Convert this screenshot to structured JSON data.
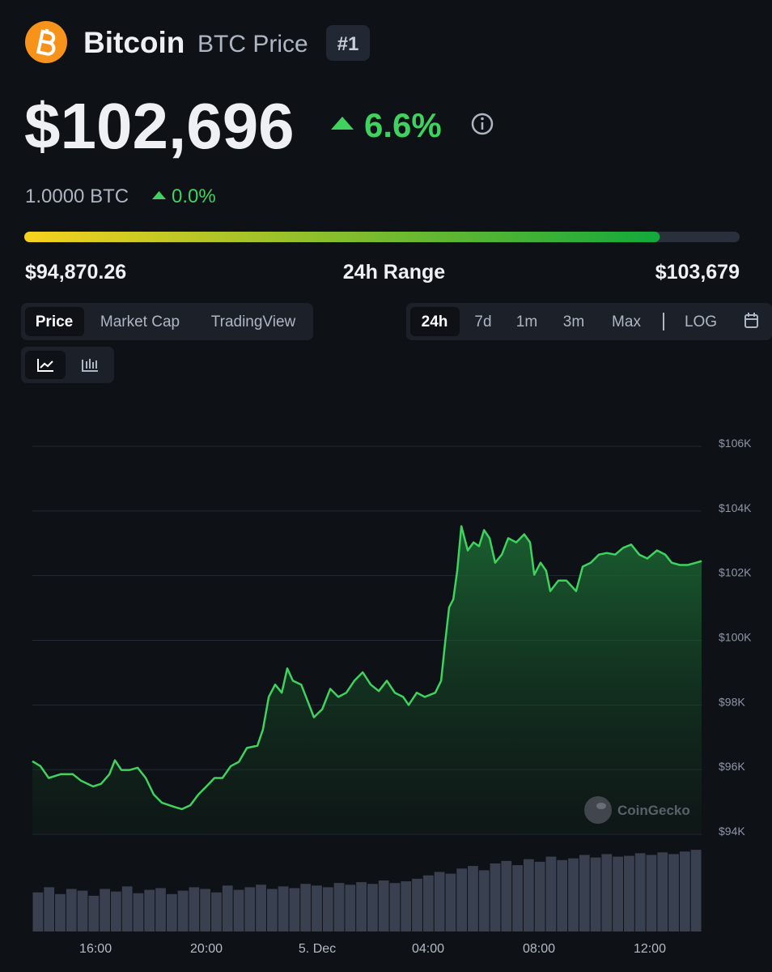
{
  "header": {
    "name": "Bitcoin",
    "symbol": "BTC Price",
    "rank": "#1"
  },
  "price": {
    "value": 102696,
    "label": "$102,696"
  },
  "change": "6.6%",
  "btc_price": "1.0000 BTC",
  "btc_change": "0.0%",
  "range": {
    "low": {
      "value": 94870.26,
      "label": "$94,870.26"
    },
    "label": "24h Range",
    "high": {
      "value": 103679,
      "label": "$103,679"
    }
  },
  "tabs": [
    "Price",
    "Market Cap",
    "TradingView"
  ],
  "periods": [
    "24h",
    "7d",
    "1m",
    "3m",
    "Max"
  ],
  "log": "LOG",
  "watermark": "CoinGecko",
  "chart_data": {
    "type": "area",
    "color": "#3fd25f",
    "x": [
      13.72,
      14.01,
      14.31,
      14.74,
      15.18,
      15.47,
      15.91,
      16.2,
      16.5,
      16.7,
      16.93,
      17.23,
      17.52,
      17.81,
      18.1,
      18.39,
      18.83,
      19.12,
      19.42,
      19.71,
      20.0,
      20.29,
      20.58,
      20.88,
      21.17,
      21.46,
      21.84,
      22.04,
      22.25,
      22.48,
      22.72,
      22.92,
      23.12,
      23.42,
      23.65,
      23.88,
      24.18,
      24.47,
      24.76,
      25.05,
      25.34,
      25.64,
      25.93,
      26.22,
      26.51,
      26.8,
      27.1,
      27.3,
      27.59,
      27.88,
      28.26,
      28.47,
      28.61,
      28.76,
      28.91,
      29.05,
      29.2,
      29.43,
      29.64,
      29.84,
      30.02,
      30.22,
      30.42,
      30.66,
      30.89,
      31.18,
      31.47,
      31.68,
      31.83,
      32.06,
      32.26,
      32.41,
      32.7,
      32.99,
      33.34,
      33.58,
      33.87,
      34.16,
      34.45,
      34.75,
      35.04,
      35.33,
      35.62,
      35.91,
      36.26,
      36.56,
      36.79,
      37.08,
      37.37,
      37.67,
      37.87
    ],
    "values": [
      96260,
      96110,
      95740,
      95860,
      95860,
      95660,
      95480,
      95560,
      95860,
      96290,
      95990,
      95990,
      96060,
      95740,
      95230,
      94980,
      94850,
      94780,
      94900,
      95230,
      95480,
      95740,
      95740,
      96110,
      96240,
      96670,
      96740,
      97240,
      98250,
      98630,
      98380,
      99130,
      98750,
      98630,
      98130,
      97620,
      97870,
      98500,
      98250,
      98380,
      98750,
      99010,
      98630,
      98430,
      98750,
      98380,
      98250,
      98000,
      98380,
      98250,
      98380,
      98750,
      99890,
      101020,
      101270,
      102150,
      103530,
      102780,
      103030,
      102910,
      103410,
      103160,
      102400,
      102650,
      103160,
      103030,
      103280,
      103030,
      102030,
      102400,
      102150,
      101520,
      101850,
      101850,
      101520,
      102280,
      102400,
      102650,
      102700,
      102650,
      102860,
      102960,
      102650,
      102530,
      102780,
      102650,
      102400,
      102330,
      102330,
      102400,
      102450
    ],
    "xlim": [
      13.72,
      37.87
    ],
    "xticks": [
      {
        "value": 16,
        "label": "16:00"
      },
      {
        "value": 20,
        "label": "20:00"
      },
      {
        "value": 24,
        "label": "5. Dec"
      },
      {
        "value": 28,
        "label": "04:00"
      },
      {
        "value": 32,
        "label": "08:00"
      },
      {
        "value": 36,
        "label": "12:00"
      }
    ],
    "ylim": [
      94000,
      106000
    ],
    "yticks": [
      {
        "value": 94000,
        "label": "$94K"
      },
      {
        "value": 96000,
        "label": "$96K"
      },
      {
        "value": 98000,
        "label": "$98K"
      },
      {
        "value": 100000,
        "label": "$100K"
      },
      {
        "value": 102000,
        "label": "$102K"
      },
      {
        "value": 104000,
        "label": "$104K"
      },
      {
        "value": 106000,
        "label": "$106K"
      }
    ],
    "grid": true,
    "volume": {
      "color": "#394150",
      "lim": [
        0,
        100
      ],
      "values": [
        46,
        52,
        44,
        50,
        48,
        42,
        50,
        47,
        53,
        45,
        49,
        51,
        44,
        48,
        52,
        50,
        46,
        54,
        49,
        52,
        55,
        50,
        53,
        51,
        56,
        54,
        52,
        57,
        55,
        58,
        56,
        60,
        57,
        59,
        62,
        66,
        70,
        68,
        74,
        77,
        72,
        80,
        83,
        78,
        85,
        82,
        88,
        84,
        86,
        90,
        87,
        91,
        88,
        89,
        92,
        90,
        93,
        91,
        94,
        96
      ]
    }
  }
}
